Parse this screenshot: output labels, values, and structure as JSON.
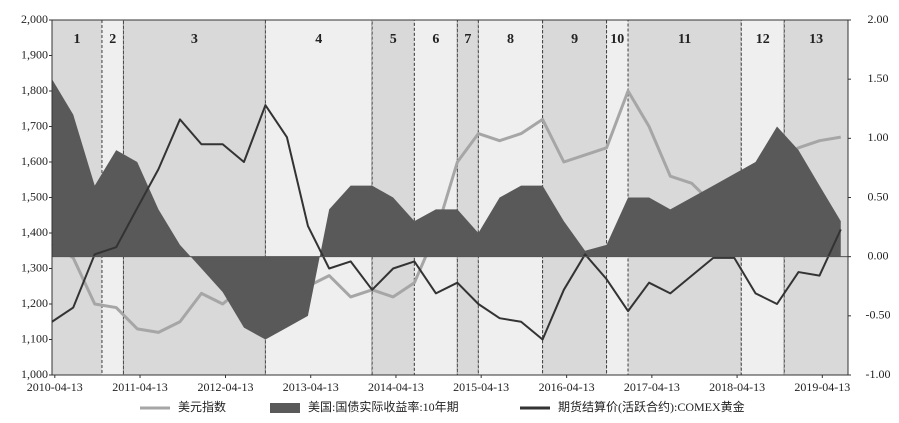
{
  "chart_data": {
    "type": "line",
    "x": [
      "2010-04",
      "2010-07",
      "2010-10",
      "2011-01",
      "2011-04",
      "2011-07",
      "2011-10",
      "2012-01",
      "2012-04",
      "2012-07",
      "2012-10",
      "2013-01",
      "2013-04",
      "2013-07",
      "2013-10",
      "2014-01",
      "2014-04",
      "2014-07",
      "2014-10",
      "2015-01",
      "2015-04",
      "2015-07",
      "2015-10",
      "2016-01",
      "2016-04",
      "2016-07",
      "2016-10",
      "2017-01",
      "2017-04",
      "2017-07",
      "2017-10",
      "2018-01",
      "2018-04",
      "2018-07",
      "2018-10",
      "2019-01",
      "2019-04",
      "2019-07"
    ],
    "series": [
      {
        "name": "美元指数",
        "color": "#a6a6a6",
        "kind": "line",
        "values": [
          1370,
          1330,
          1200,
          1190,
          1130,
          1120,
          1150,
          1230,
          1200,
          1250,
          1200,
          1230,
          1250,
          1280,
          1220,
          1240,
          1220,
          1260,
          1400,
          1600,
          1680,
          1660,
          1680,
          1720,
          1600,
          1620,
          1640,
          1800,
          1700,
          1560,
          1540,
          1480,
          1470,
          1570,
          1600,
          1640,
          1660,
          1670
        ]
      },
      {
        "name": "美国:国债实际收益率:10年期",
        "color": "#595959",
        "kind": "area",
        "axis": "y2",
        "values": [
          1.5,
          1.2,
          0.6,
          0.9,
          0.8,
          0.4,
          0.1,
          -0.1,
          -0.3,
          -0.6,
          -0.7,
          -0.6,
          -0.5,
          0.4,
          0.6,
          0.6,
          0.5,
          0.3,
          0.4,
          0.4,
          0.2,
          0.5,
          0.6,
          0.6,
          0.3,
          0.05,
          0.1,
          0.5,
          0.5,
          0.4,
          0.5,
          0.6,
          0.7,
          0.8,
          1.1,
          0.9,
          0.6,
          0.3
        ]
      },
      {
        "name": "期货结算价(活跃合约):COMEX黄金",
        "color": "#333333",
        "kind": "line",
        "values": [
          1150,
          1190,
          1340,
          1360,
          1470,
          1580,
          1720,
          1650,
          1650,
          1600,
          1760,
          1670,
          1420,
          1300,
          1320,
          1240,
          1300,
          1320,
          1230,
          1260,
          1200,
          1160,
          1150,
          1100,
          1240,
          1340,
          1270,
          1180,
          1260,
          1230,
          1280,
          1330,
          1330,
          1230,
          1200,
          1290,
          1280,
          1410
        ]
      }
    ],
    "regions": [
      {
        "label": "1",
        "start": "2010-04",
        "end": "2010-11",
        "shaded": true
      },
      {
        "label": "2",
        "start": "2010-11",
        "end": "2011-02",
        "shaded": false
      },
      {
        "label": "3",
        "start": "2011-02",
        "end": "2012-10",
        "shaded": true
      },
      {
        "label": "4",
        "start": "2012-10",
        "end": "2014-01",
        "shaded": false
      },
      {
        "label": "5",
        "start": "2014-01",
        "end": "2014-07",
        "shaded": true
      },
      {
        "label": "6",
        "start": "2014-07",
        "end": "2015-01",
        "shaded": false
      },
      {
        "label": "7",
        "start": "2015-01",
        "end": "2015-04",
        "shaded": true
      },
      {
        "label": "8",
        "start": "2015-04",
        "end": "2016-01",
        "shaded": false
      },
      {
        "label": "9",
        "start": "2016-01",
        "end": "2016-10",
        "shaded": true
      },
      {
        "label": "10",
        "start": "2016-10",
        "end": "2017-01",
        "shaded": false
      },
      {
        "label": "11",
        "start": "2017-01",
        "end": "2018-05",
        "shaded": true
      },
      {
        "label": "12",
        "start": "2018-05",
        "end": "2018-11",
        "shaded": false
      },
      {
        "label": "13",
        "start": "2018-11",
        "end": "2019-08",
        "shaded": true
      }
    ],
    "xlim": [
      "2010-04",
      "2019-08"
    ],
    "xticks": [
      "2010-04-13",
      "2011-04-13",
      "2012-04-13",
      "2013-04-13",
      "2014-04-13",
      "2015-04-13",
      "2016-04-13",
      "2017-04-13",
      "2018-04-13",
      "2019-04-13"
    ],
    "ylim": [
      1000,
      2000
    ],
    "yticks": [
      {
        "value": 1000,
        "label": "1,000"
      },
      {
        "value": 1100,
        "label": "1,100"
      },
      {
        "value": 1200,
        "label": "1,200"
      },
      {
        "value": 1300,
        "label": "1,300"
      },
      {
        "value": 1400,
        "label": "1,400"
      },
      {
        "value": 1500,
        "label": "1,500"
      },
      {
        "value": 1600,
        "label": "1,600"
      },
      {
        "value": 1700,
        "label": "1,700"
      },
      {
        "value": 1800,
        "label": "1,800"
      },
      {
        "value": 1900,
        "label": "1,900"
      },
      {
        "value": 2000,
        "label": "2,000"
      }
    ],
    "y2lim": [
      -1,
      2
    ],
    "y2ticks": [
      {
        "value": -1,
        "label": "-1.00"
      },
      {
        "value": -0.5,
        "label": "-0.50"
      },
      {
        "value": 0,
        "label": "0.00"
      },
      {
        "value": 0.5,
        "label": "0.50"
      },
      {
        "value": 1,
        "label": "1.00"
      },
      {
        "value": 1.5,
        "label": "1.50"
      },
      {
        "value": 2,
        "label": "2.00"
      }
    ],
    "legend": "bottom"
  }
}
